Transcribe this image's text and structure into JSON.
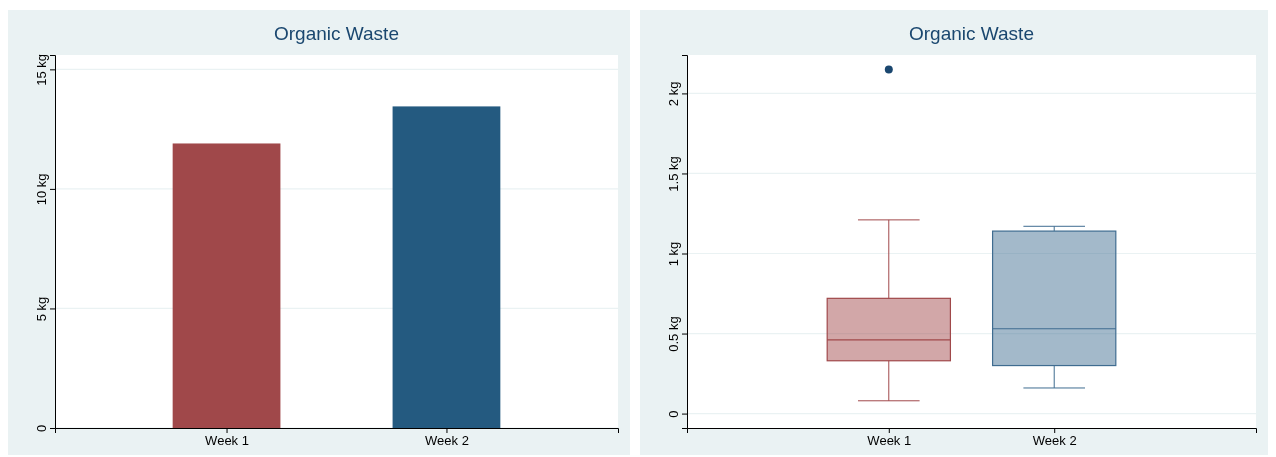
{
  "chart_data": [
    {
      "type": "bar",
      "title": "Organic Waste",
      "categories": [
        "Week 1",
        "Week 2"
      ],
      "values": [
        11.9,
        13.45
      ],
      "colors": [
        "#a0484a",
        "#245a80"
      ],
      "ylim": [
        0,
        15.6
      ],
      "yticks": [
        0,
        {
          "value": 5,
          "label": "5 kg"
        },
        {
          "value": 10,
          "label": "10 kg"
        },
        {
          "value": 15,
          "label": "15 kg"
        }
      ],
      "grid": "y"
    },
    {
      "type": "box",
      "title": "Organic Waste",
      "categories": [
        "Week 1",
        "Week 2"
      ],
      "colors": [
        "#a0484a",
        "#3f6c90"
      ],
      "boxes": [
        {
          "low": 0.08,
          "q1": 0.33,
          "median": 0.46,
          "q3": 0.72,
          "high": 1.21,
          "outliers": [
            2.15
          ]
        },
        {
          "low": 0.16,
          "q1": 0.3,
          "median": 0.53,
          "q3": 1.14,
          "high": 1.17
        }
      ],
      "ylim": [
        -0.09,
        2.24
      ],
      "yticks": [
        0,
        {
          "value": 0.5,
          "label": "0.5 kg"
        },
        {
          "value": 1,
          "label": "1 kg"
        },
        {
          "value": 1.5,
          "label": "1.5 kg"
        },
        {
          "value": 2,
          "label": "2 kg"
        }
      ],
      "grid": "y"
    }
  ]
}
